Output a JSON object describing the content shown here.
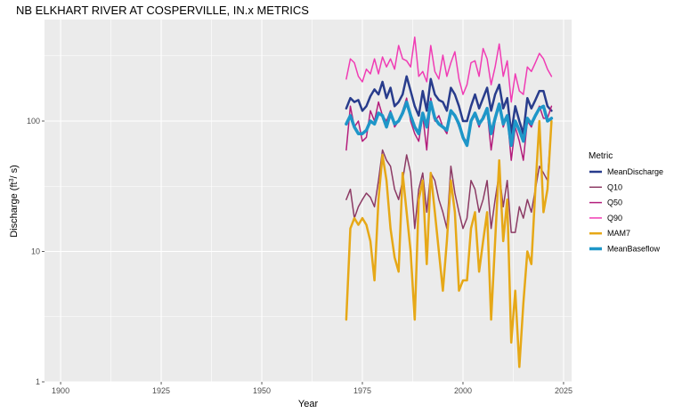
{
  "chart_data": {
    "type": "line",
    "title": "NB ELKHART RIVER AT COSPERVILLE, IN.x  METRICS",
    "xlabel": "Year",
    "ylabel_main": "Discharge (ft",
    "ylabel_sup": "3",
    "ylabel_tail": "/ s)",
    "y_scale": "log10",
    "xlim": [
      1896,
      2027
    ],
    "ylim": [
      1,
      600
    ],
    "x_ticks": [
      1900,
      1925,
      1950,
      1975,
      2000,
      2025
    ],
    "y_ticks": [
      1,
      10,
      100
    ],
    "grid": true,
    "legend_title": "Metric",
    "legend_position": "right",
    "x": [
      1971,
      1972,
      1973,
      1974,
      1975,
      1976,
      1977,
      1978,
      1979,
      1980,
      1981,
      1982,
      1983,
      1984,
      1985,
      1986,
      1987,
      1988,
      1989,
      1990,
      1991,
      1992,
      1993,
      1994,
      1995,
      1996,
      1997,
      1998,
      1999,
      2000,
      2001,
      2002,
      2003,
      2004,
      2005,
      2006,
      2007,
      2008,
      2009,
      2010,
      2011,
      2012,
      2013,
      2014,
      2015,
      2016,
      2017,
      2018,
      2019,
      2020,
      2021,
      2022
    ],
    "series": [
      {
        "name": "MeanDischarge",
        "color": "#283C8C",
        "width": 2.5,
        "values": [
          125,
          150,
          140,
          145,
          120,
          130,
          155,
          175,
          160,
          200,
          150,
          180,
          130,
          140,
          160,
          220,
          170,
          130,
          110,
          170,
          120,
          210,
          160,
          145,
          140,
          120,
          180,
          160,
          130,
          100,
          100,
          130,
          160,
          125,
          150,
          180,
          120,
          160,
          190,
          125,
          150,
          80,
          130,
          100,
          80,
          150,
          125,
          145,
          170,
          170,
          130,
          120
        ]
      },
      {
        "name": "Q10",
        "color": "#8C3A64",
        "width": 1.5,
        "values": [
          25,
          30,
          18,
          22,
          25,
          28,
          26,
          22,
          35,
          60,
          50,
          45,
          30,
          25,
          35,
          55,
          40,
          15,
          30,
          40,
          20,
          40,
          35,
          25,
          20,
          15,
          45,
          28,
          20,
          15,
          18,
          35,
          30,
          20,
          25,
          35,
          15,
          25,
          40,
          22,
          35,
          14,
          14,
          22,
          18,
          25,
          20,
          30,
          45,
          40,
          35,
          100
        ]
      },
      {
        "name": "Q50",
        "color": "#B41E7C",
        "width": 1.5,
        "values": [
          60,
          130,
          90,
          100,
          70,
          75,
          120,
          100,
          140,
          110,
          100,
          120,
          90,
          100,
          120,
          150,
          100,
          80,
          70,
          110,
          60,
          150,
          100,
          110,
          90,
          80,
          120,
          110,
          90,
          75,
          70,
          100,
          110,
          90,
          110,
          120,
          60,
          100,
          130,
          90,
          110,
          50,
          90,
          70,
          50,
          100,
          90,
          110,
          130,
          105,
          105,
          130
        ]
      },
      {
        "name": "Q90",
        "color": "#F03CB4",
        "width": 1.5,
        "values": [
          210,
          300,
          280,
          220,
          200,
          250,
          230,
          300,
          230,
          310,
          260,
          300,
          250,
          380,
          300,
          290,
          260,
          440,
          220,
          240,
          200,
          380,
          240,
          210,
          320,
          220,
          280,
          340,
          210,
          160,
          190,
          280,
          290,
          220,
          360,
          300,
          190,
          260,
          390,
          220,
          290,
          140,
          230,
          170,
          160,
          260,
          240,
          280,
          330,
          300,
          250,
          220
        ]
      },
      {
        "name": "MAM7",
        "color": "#E6A817",
        "width": 2.5,
        "values": [
          3,
          15,
          18,
          16,
          18,
          16,
          12,
          6,
          25,
          55,
          35,
          15,
          9,
          7,
          40,
          20,
          10,
          3,
          25,
          35,
          8,
          40,
          20,
          10,
          5,
          12,
          35,
          20,
          5,
          6,
          6,
          15,
          20,
          7,
          12,
          20,
          3,
          12,
          50,
          12,
          25,
          2,
          5,
          1.3,
          4,
          10,
          8,
          30,
          100,
          20,
          30,
          100
        ]
      },
      {
        "name": "MeanBaseflow",
        "color": "#1E96C8",
        "width": 3.5,
        "values": [
          95,
          110,
          90,
          80,
          80,
          85,
          100,
          95,
          115,
          110,
          90,
          115,
          95,
          100,
          115,
          140,
          110,
          90,
          80,
          115,
          90,
          140,
          105,
          95,
          90,
          85,
          120,
          110,
          95,
          75,
          65,
          100,
          115,
          95,
          105,
          125,
          80,
          105,
          135,
          95,
          110,
          65,
          100,
          85,
          70,
          105,
          95,
          110,
          125,
          130,
          100,
          105
        ]
      }
    ]
  }
}
